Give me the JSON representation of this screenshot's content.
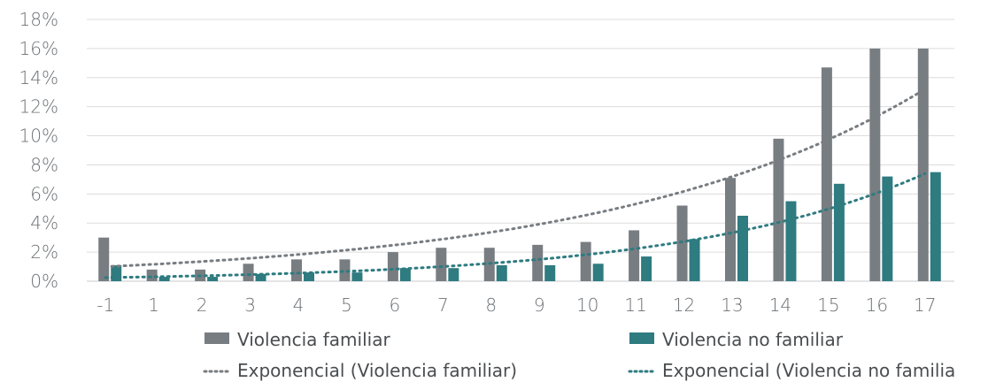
{
  "chart_data": {
    "type": "bar",
    "categories": [
      "-1",
      "1",
      "2",
      "3",
      "4",
      "5",
      "6",
      "7",
      "8",
      "9",
      "10",
      "11",
      "12",
      "13",
      "14",
      "15",
      "16",
      "17"
    ],
    "series": [
      {
        "name": "Violencia familiar",
        "color": "#787d82",
        "values": [
          3.0,
          0.8,
          0.8,
          1.2,
          1.5,
          1.5,
          2.0,
          2.3,
          2.3,
          2.5,
          2.7,
          3.5,
          5.2,
          7.1,
          9.8,
          14.7,
          16.0,
          16.0
        ]
      },
      {
        "name": "Violencia no familiar",
        "color": "#2e7b80",
        "values": [
          1.1,
          0.3,
          0.3,
          0.5,
          0.6,
          0.6,
          0.9,
          0.9,
          1.1,
          1.1,
          1.2,
          1.7,
          2.9,
          4.5,
          5.5,
          6.7,
          7.2,
          7.5
        ]
      }
    ],
    "trendlines": [
      {
        "name": "Exponencial (Violencia familiar)",
        "type": "exponential",
        "color": "#787d82",
        "start": 1.0,
        "end": 13.2
      },
      {
        "name": "Exponencial (Violencia no familia",
        "type": "exponential",
        "color": "#2e7b80",
        "start": 0.25,
        "end": 7.4
      }
    ],
    "y_ticks": [
      "0%",
      "2%",
      "4%",
      "6%",
      "8%",
      "10%",
      "12%",
      "14%",
      "16%",
      "18%"
    ],
    "ylim": [
      0,
      18
    ],
    "grid": true,
    "legend_position": "bottom"
  }
}
